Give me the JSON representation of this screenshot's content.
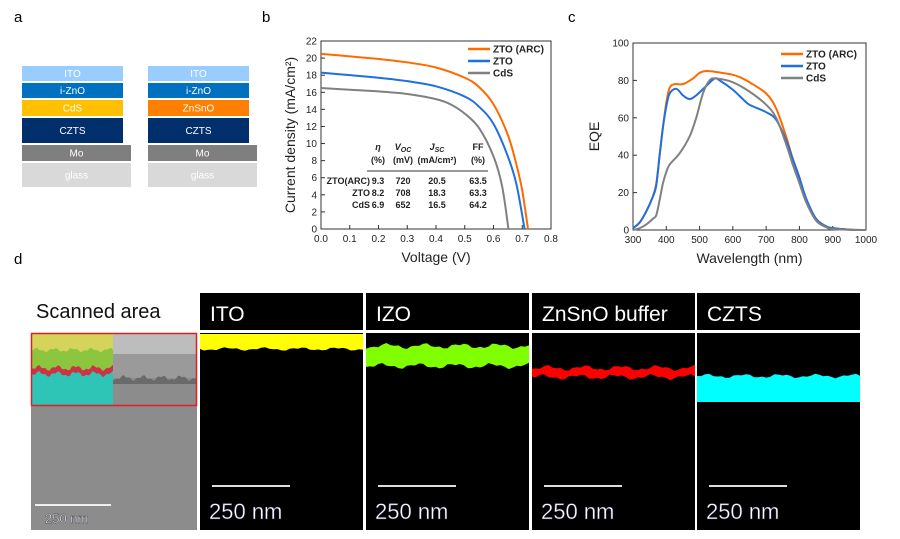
{
  "panel_labels": {
    "a": "a",
    "b": "b",
    "c": "c",
    "d": "d"
  },
  "panel_a": {
    "stacks": [
      {
        "layers": [
          {
            "name": "ITO",
            "color": "#99ccff"
          },
          {
            "name": "i-ZnO",
            "color": "#0070c0"
          },
          {
            "name": "CdS",
            "color": "#ffc000"
          },
          {
            "name": "CZTS",
            "color": "#002f6c"
          },
          {
            "name": "Mo",
            "color": "#7f7f7f"
          },
          {
            "name": "glass",
            "color": "#d9d9d9"
          }
        ]
      },
      {
        "layers": [
          {
            "name": "ITO",
            "color": "#99ccff"
          },
          {
            "name": "i-ZnO",
            "color": "#0070c0"
          },
          {
            "name": "ZnSnO",
            "color": "#ff8000"
          },
          {
            "name": "CZTS",
            "color": "#002f6c"
          },
          {
            "name": "Mo",
            "color": "#7f7f7f"
          },
          {
            "name": "glass",
            "color": "#d9d9d9"
          }
        ]
      }
    ]
  },
  "chart_data": [
    {
      "type": "line",
      "xlabel": "Voltage (V)",
      "ylabel": "Current density (mA/cm²)",
      "xlim": [
        0,
        0.8
      ],
      "ylim": [
        0,
        22
      ],
      "xticks": [
        "0.0",
        "0.1",
        "0.2",
        "0.3",
        "0.4",
        "0.5",
        "0.6",
        "0.7",
        "0.8"
      ],
      "yticks": [
        "0",
        "2",
        "4",
        "6",
        "8",
        "10",
        "12",
        "14",
        "16",
        "18",
        "20",
        "22"
      ],
      "legend_position": "top-right",
      "series": [
        {
          "name": "ZTO (ARC)",
          "color": "#ff6a00",
          "x": [
            0,
            0.1,
            0.2,
            0.3,
            0.4,
            0.5,
            0.55,
            0.6,
            0.65,
            0.68,
            0.7,
            0.72
          ],
          "y": [
            20.5,
            20.2,
            19.9,
            19.5,
            18.9,
            17.7,
            16.6,
            14.6,
            11.0,
            7.5,
            4.5,
            0
          ]
        },
        {
          "name": "ZTO",
          "color": "#1f6fe0",
          "x": [
            0,
            0.1,
            0.2,
            0.3,
            0.4,
            0.5,
            0.55,
            0.6,
            0.65,
            0.68,
            0.708
          ],
          "y": [
            18.3,
            18.0,
            17.7,
            17.3,
            16.7,
            15.5,
            14.3,
            12.3,
            8.5,
            5.2,
            0
          ]
        },
        {
          "name": "CdS",
          "color": "#808080",
          "x": [
            0,
            0.1,
            0.2,
            0.3,
            0.4,
            0.45,
            0.5,
            0.55,
            0.6,
            0.63,
            0.652
          ],
          "y": [
            16.5,
            16.3,
            16.1,
            15.8,
            15.2,
            14.6,
            13.5,
            11.8,
            8.5,
            5.0,
            0
          ]
        }
      ],
      "table": {
        "headers": [
          {
            "sym": "η",
            "sub": "",
            "unit": "(%)"
          },
          {
            "sym": "V",
            "sub": "OC",
            "unit": "(mV)"
          },
          {
            "sym": "J",
            "sub": "SC",
            "unit": "(mA/cm²)"
          },
          {
            "sym": "FF",
            "sub": "",
            "unit": "(%)"
          }
        ],
        "rows": [
          {
            "label": "ZTO(ARC)",
            "values": [
              "9.3",
              "720",
              "20.5",
              "63.5"
            ]
          },
          {
            "label": "ZTO",
            "values": [
              "8.2",
              "708",
              "18.3",
              "63.3"
            ]
          },
          {
            "label": "CdS",
            "values": [
              "6.9",
              "652",
              "16.5",
              "64.2"
            ]
          }
        ]
      }
    },
    {
      "type": "line",
      "xlabel": "Wavelength (nm)",
      "ylabel": "EQE",
      "xlim": [
        300,
        1000
      ],
      "ylim": [
        0,
        100
      ],
      "xticks": [
        "300",
        "400",
        "500",
        "600",
        "700",
        "800",
        "900",
        "1000"
      ],
      "yticks": [
        "0",
        "20",
        "40",
        "60",
        "80",
        "100"
      ],
      "legend_position": "top-right",
      "series": [
        {
          "name": "ZTO (ARC)",
          "color": "#ff6a00",
          "x": [
            300,
            320,
            340,
            360,
            370,
            380,
            390,
            400,
            410,
            425,
            450,
            480,
            500,
            520,
            550,
            600,
            630,
            650,
            700,
            730,
            760,
            780,
            800,
            820,
            850,
            880,
            900,
            950,
            1000
          ],
          "y": [
            1,
            4,
            10,
            18,
            25,
            40,
            55,
            68,
            76,
            78,
            78,
            81,
            84,
            85,
            84.5,
            83,
            81,
            79,
            73,
            65,
            50,
            38,
            28,
            16,
            6,
            2,
            1,
            0.2,
            0
          ]
        },
        {
          "name": "ZTO",
          "color": "#1f6fe0",
          "x": [
            300,
            320,
            340,
            360,
            370,
            380,
            390,
            400,
            410,
            430,
            450,
            470,
            490,
            520,
            545,
            560,
            600,
            630,
            650,
            700,
            730,
            760,
            780,
            800,
            820,
            850,
            880,
            900,
            950,
            1000
          ],
          "y": [
            1,
            4,
            10,
            18,
            24,
            40,
            55,
            66,
            73,
            75.5,
            72,
            70,
            72,
            77,
            81,
            80,
            75,
            70,
            67,
            63,
            59,
            48,
            38,
            28,
            17,
            6,
            2,
            1,
            0.2,
            0
          ]
        },
        {
          "name": "CdS",
          "color": "#808080",
          "x": [
            300,
            320,
            340,
            360,
            370,
            380,
            390,
            400,
            410,
            440,
            470,
            490,
            510,
            530,
            550,
            600,
            650,
            700,
            730,
            760,
            780,
            800,
            820,
            850,
            880,
            900,
            950,
            1000
          ],
          "y": [
            0,
            1,
            3,
            6,
            8,
            16,
            25,
            31,
            35,
            41,
            50,
            60,
            73,
            80,
            81,
            79,
            74,
            67,
            60,
            46,
            35,
            25,
            15,
            5,
            1.5,
            0.5,
            0.1,
            0
          ]
        }
      ]
    }
  ],
  "panel_d": {
    "scanned_title": "Scanned area",
    "maps": [
      {
        "title": "ITO",
        "color": "#ffff00"
      },
      {
        "title": "IZO",
        "color": "#80ff00"
      },
      {
        "title": "ZnSnO buffer",
        "color": "#ff0000"
      },
      {
        "title": "CZTS",
        "color": "#00ffff"
      }
    ],
    "scale_bar": "250 nm"
  }
}
